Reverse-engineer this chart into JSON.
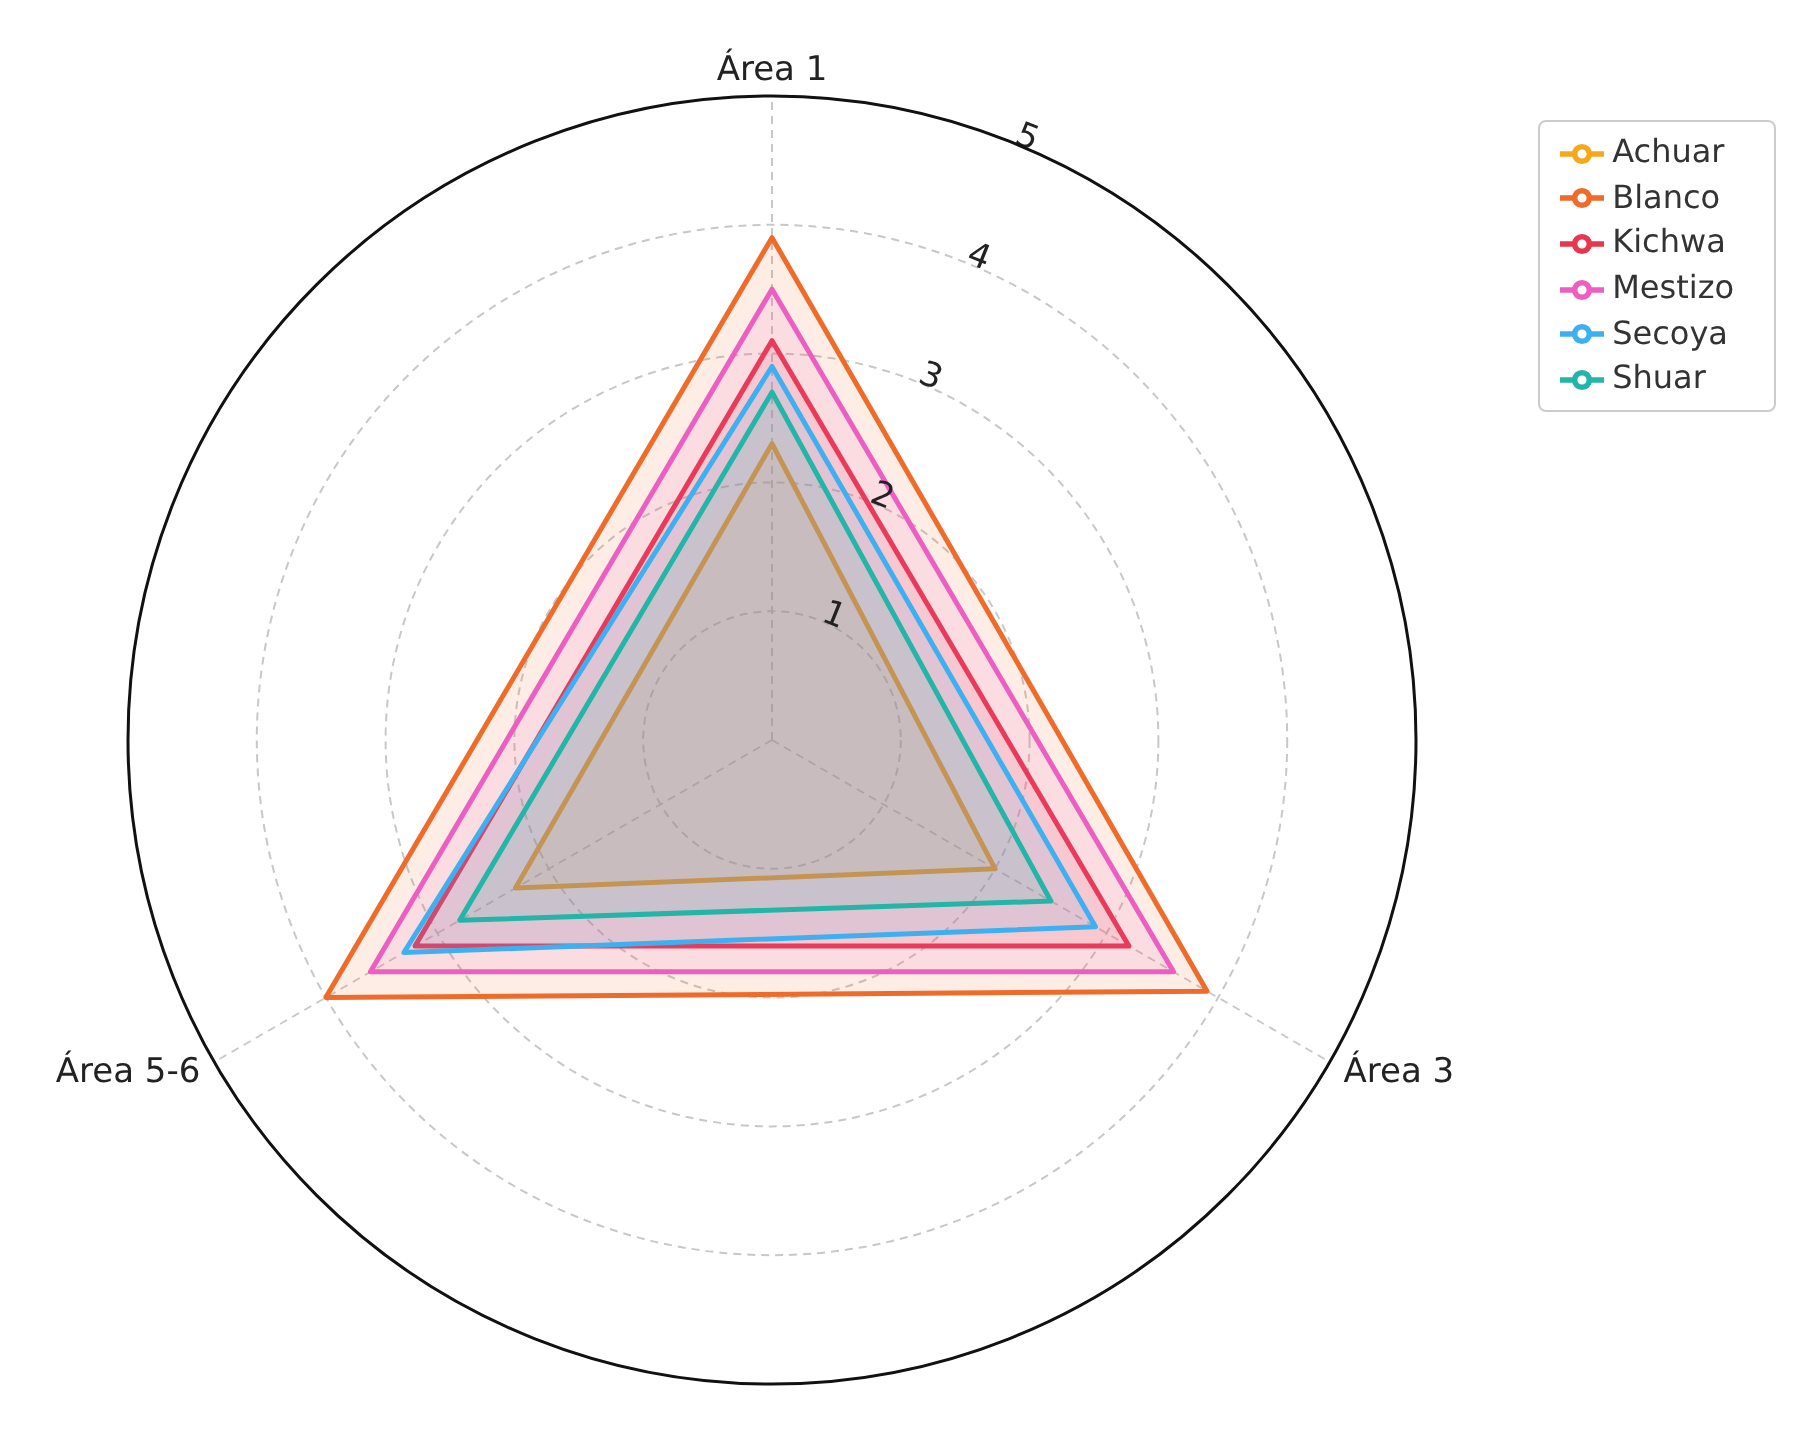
{
  "chart_data": {
    "type": "radar",
    "categories": [
      "Área 1",
      "Área 3",
      "Área 5-6"
    ],
    "series": [
      {
        "name": "Achuar",
        "color": "#f5a81c",
        "values": [
          2.3,
          2.0,
          2.3
        ]
      },
      {
        "name": "Blanco",
        "color": "#ef6b2a",
        "values": [
          3.9,
          3.9,
          4.0
        ]
      },
      {
        "name": "Kichwa",
        "color": "#e8364f",
        "values": [
          3.1,
          3.2,
          3.2
        ]
      },
      {
        "name": "Mestizo",
        "color": "#ec5fc0",
        "values": [
          3.5,
          3.6,
          3.6
        ]
      },
      {
        "name": "Secoya",
        "color": "#3fb0ef",
        "values": [
          2.9,
          2.9,
          3.3
        ]
      },
      {
        "name": "Shuar",
        "color": "#22b5a8",
        "values": [
          2.7,
          2.5,
          2.8
        ]
      }
    ],
    "ylim": [
      0,
      5
    ],
    "yticks": [
      1,
      2,
      3,
      4,
      5
    ],
    "grid": true,
    "legend": "top right",
    "marker": "none",
    "line_style": "solid"
  }
}
